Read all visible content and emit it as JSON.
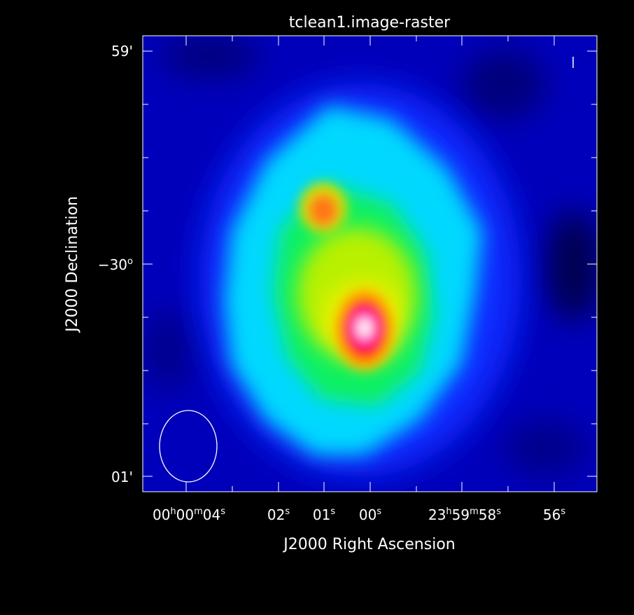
{
  "chart_data": {
    "type": "heatmap",
    "title": "tclean1.image-raster",
    "xlabel": "J2000 Right Ascension",
    "ylabel": "J2000 Declination",
    "x_ticks": [
      {
        "value": "00h00m04s",
        "parts": [
          [
            "00",
            ""
          ],
          [
            "h",
            "sup"
          ],
          [
            "00",
            ""
          ],
          [
            "m",
            "sup"
          ],
          [
            "04",
            ""
          ],
          [
            "s",
            "sup"
          ]
        ]
      },
      {
        "value": "02s",
        "parts": [
          [
            "02",
            ""
          ],
          [
            "s",
            "sup"
          ]
        ]
      },
      {
        "value": "01s",
        "parts": [
          [
            "01",
            ""
          ],
          [
            "s",
            "sup"
          ]
        ]
      },
      {
        "value": "00s",
        "parts": [
          [
            "00",
            ""
          ],
          [
            "s",
            "sup"
          ]
        ]
      },
      {
        "value": "23h59m58s",
        "parts": [
          [
            "23",
            ""
          ],
          [
            "h",
            "sup"
          ],
          [
            "59",
            ""
          ],
          [
            "m",
            "sup"
          ],
          [
            "58",
            ""
          ],
          [
            "s",
            "sup"
          ]
        ]
      },
      {
        "value": "56s",
        "parts": [
          [
            "56",
            ""
          ],
          [
            "s",
            "sup"
          ]
        ]
      }
    ],
    "y_ticks": [
      {
        "value": "59'",
        "parts": [
          [
            "59'",
            ""
          ]
        ]
      },
      {
        "value": "-30°",
        "parts": [
          [
            "−30",
            ""
          ],
          [
            "o",
            "sup"
          ]
        ]
      },
      {
        "value": "01'",
        "parts": [
          [
            "01'",
            ""
          ]
        ]
      }
    ],
    "colormap": "rainbow",
    "colors": {
      "background": "#000000",
      "low": "#0000cc",
      "mid_low": "#00ffff",
      "mid": "#00ff00",
      "mid_high": "#ffff00",
      "high": "#ff0000",
      "peak": "#ffffff",
      "frame": "#ffffff"
    },
    "features": {
      "peak_source": "bright compact source near RA 00s, south of -30° Dec",
      "secondary_source": "orange compact source near RA 01s, north of -30° Dec",
      "beam_ellipse": "restoring beam shown at lower left"
    }
  }
}
